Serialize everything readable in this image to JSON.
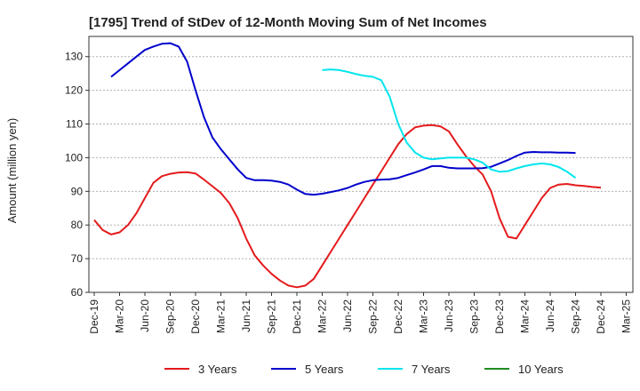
{
  "chart_data": {
    "type": "line",
    "title": "[1795]  Trend of StDev of 12-Month Moving Sum of Net Incomes",
    "xlabel": "",
    "ylabel": "Amount (million yen)",
    "ylim": [
      60,
      136
    ],
    "yticks": [
      60,
      70,
      80,
      90,
      100,
      110,
      120,
      130
    ],
    "xticks": [
      "Dec-19",
      "Mar-20",
      "Jun-20",
      "Sep-20",
      "Dec-20",
      "Mar-21",
      "Jun-21",
      "Sep-21",
      "Dec-21",
      "Mar-22",
      "Jun-22",
      "Sep-22",
      "Dec-22",
      "Mar-23",
      "Jun-23",
      "Sep-23",
      "Dec-23",
      "Mar-24",
      "Jun-24",
      "Sep-24",
      "Dec-24",
      "Mar-25"
    ],
    "grid": "horizontal",
    "legend_position": "bottom",
    "series": [
      {
        "name": "3 Years",
        "color": "#e41a1c",
        "start_index": 0,
        "values": [
          81.5,
          78.5,
          77.2,
          77.8,
          80,
          83.5,
          88,
          92.5,
          94.5,
          95.2,
          95.6,
          95.7,
          95.3,
          93.5,
          91.5,
          89.5,
          86.5,
          82,
          76,
          71,
          68,
          65.5,
          63.5,
          62,
          61.5,
          62,
          64,
          68,
          72,
          76,
          80,
          84,
          88,
          92,
          96,
          100,
          104,
          107,
          109,
          109.5,
          109.7,
          109.3,
          107.8,
          104,
          100.5,
          97.5,
          95,
          90,
          82,
          76.5,
          76,
          80,
          84,
          88,
          91,
          92,
          92.2,
          91.8,
          91.6,
          91.3,
          91.1
        ]
      },
      {
        "name": "5 Years",
        "color": "#0000cc",
        "start_index": 2,
        "values": [
          124,
          126,
          128,
          130,
          132,
          133,
          133.8,
          134,
          133,
          128.5,
          120,
          112,
          106,
          102.5,
          99.5,
          96.5,
          94,
          93.3,
          93.3,
          93.2,
          92.8,
          92,
          90.5,
          89.2,
          89,
          89.3,
          89.8,
          90.3,
          91,
          92,
          92.8,
          93.3,
          93.5,
          93.6,
          94,
          94.8,
          95.6,
          96.5,
          97.5,
          97.5,
          97,
          96.8,
          96.8,
          96.8,
          96.9,
          97.3,
          98.3,
          99.3,
          100.5,
          101.5,
          101.7,
          101.6,
          101.6,
          101.5,
          101.5,
          101.4
        ]
      },
      {
        "name": "7 Years",
        "color": "#00e5ee",
        "start_index": 27,
        "values": [
          126,
          126.2,
          126,
          125.5,
          124.8,
          124.3,
          124,
          123,
          118,
          110,
          104.5,
          101.5,
          100,
          99.5,
          99.8,
          100,
          100,
          100,
          99.5,
          98.5,
          96.5,
          95.8,
          96,
          96.8,
          97.5,
          98,
          98.3,
          98,
          97.2,
          95.8,
          94
        ]
      },
      {
        "name": "10 Years",
        "color": "#228b22",
        "start_index": 0,
        "values": []
      }
    ]
  }
}
